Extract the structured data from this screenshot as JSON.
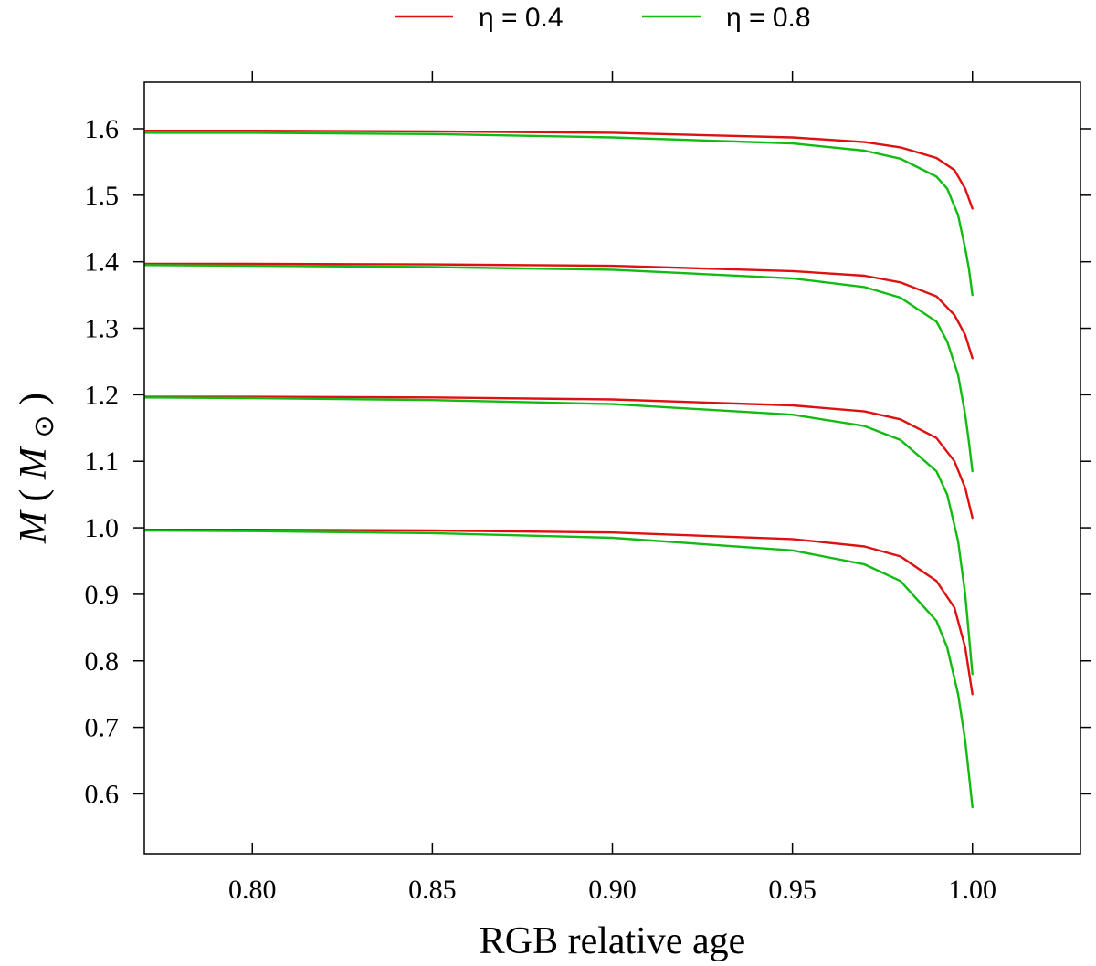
{
  "chart_data": {
    "type": "line",
    "title": "",
    "xlabel": "RGB relative age",
    "ylabel_symbol": "M",
    "ylabel_unit": "M",
    "ylabel_unit_subscript": "⊙",
    "xlim": [
      0.77,
      1.03
    ],
    "ylim": [
      0.51,
      1.67
    ],
    "x_ticks": [
      0.8,
      0.85,
      0.9,
      0.95,
      1.0
    ],
    "x_tick_labels": [
      "0.80",
      "0.85",
      "0.90",
      "0.95",
      "1.00"
    ],
    "y_ticks": [
      0.6,
      0.7,
      0.8,
      0.9,
      1.0,
      1.1,
      1.2,
      1.3,
      1.4,
      1.5,
      1.6
    ],
    "y_tick_labels": [
      "0.6",
      "0.7",
      "0.8",
      "0.9",
      "1.0",
      "1.1",
      "1.2",
      "1.3",
      "1.4",
      "1.5",
      "1.6"
    ],
    "grid": false,
    "legend_position": "top",
    "legend": [
      {
        "label": "η = 0.4",
        "color": "#dd1111"
      },
      {
        "label": "η = 0.8",
        "color": "#11bb11"
      }
    ],
    "series": [
      {
        "group": "η = 0.4",
        "initial_mass": 1.6,
        "color": "#dd1111",
        "x": [
          0.77,
          0.8,
          0.85,
          0.9,
          0.95,
          0.97,
          0.98,
          0.99,
          0.995,
          0.998,
          1.0
        ],
        "y": [
          1.597,
          1.597,
          1.596,
          1.594,
          1.587,
          1.58,
          1.572,
          1.556,
          1.538,
          1.51,
          1.48
        ]
      },
      {
        "group": "η = 0.8",
        "initial_mass": 1.6,
        "color": "#11bb11",
        "x": [
          0.77,
          0.8,
          0.85,
          0.9,
          0.95,
          0.97,
          0.98,
          0.99,
          0.993,
          0.996,
          0.998,
          0.999,
          1.0
        ],
        "y": [
          1.594,
          1.594,
          1.592,
          1.587,
          1.578,
          1.567,
          1.555,
          1.528,
          1.51,
          1.47,
          1.42,
          1.39,
          1.35
        ]
      },
      {
        "group": "η = 0.4",
        "initial_mass": 1.4,
        "color": "#dd1111",
        "x": [
          0.77,
          0.8,
          0.85,
          0.9,
          0.95,
          0.97,
          0.98,
          0.99,
          0.995,
          0.998,
          1.0
        ],
        "y": [
          1.397,
          1.397,
          1.396,
          1.394,
          1.386,
          1.379,
          1.369,
          1.348,
          1.32,
          1.29,
          1.255
        ]
      },
      {
        "group": "η = 0.8",
        "initial_mass": 1.4,
        "color": "#11bb11",
        "x": [
          0.77,
          0.8,
          0.85,
          0.9,
          0.95,
          0.97,
          0.98,
          0.99,
          0.993,
          0.996,
          0.998,
          0.999,
          1.0
        ],
        "y": [
          1.395,
          1.394,
          1.392,
          1.388,
          1.375,
          1.362,
          1.346,
          1.31,
          1.28,
          1.23,
          1.17,
          1.13,
          1.085
        ]
      },
      {
        "group": "η = 0.4",
        "initial_mass": 1.2,
        "color": "#dd1111",
        "x": [
          0.77,
          0.8,
          0.85,
          0.9,
          0.95,
          0.97,
          0.98,
          0.99,
          0.995,
          0.998,
          1.0
        ],
        "y": [
          1.197,
          1.197,
          1.196,
          1.193,
          1.184,
          1.175,
          1.163,
          1.135,
          1.1,
          1.06,
          1.015
        ]
      },
      {
        "group": "η = 0.8",
        "initial_mass": 1.2,
        "color": "#11bb11",
        "x": [
          0.77,
          0.8,
          0.85,
          0.9,
          0.95,
          0.97,
          0.98,
          0.99,
          0.993,
          0.996,
          0.998,
          0.999,
          1.0
        ],
        "y": [
          1.196,
          1.195,
          1.192,
          1.186,
          1.17,
          1.153,
          1.132,
          1.085,
          1.05,
          0.98,
          0.9,
          0.84,
          0.78
        ]
      },
      {
        "group": "η = 0.4",
        "initial_mass": 1.0,
        "color": "#dd1111",
        "x": [
          0.77,
          0.8,
          0.85,
          0.9,
          0.95,
          0.97,
          0.98,
          0.99,
          0.995,
          0.998,
          1.0
        ],
        "y": [
          0.997,
          0.997,
          0.996,
          0.993,
          0.983,
          0.972,
          0.957,
          0.92,
          0.88,
          0.82,
          0.75
        ]
      },
      {
        "group": "η = 0.8",
        "initial_mass": 1.0,
        "color": "#11bb11",
        "x": [
          0.77,
          0.8,
          0.85,
          0.9,
          0.95,
          0.97,
          0.98,
          0.99,
          0.993,
          0.996,
          0.998,
          0.999,
          1.0
        ],
        "y": [
          0.996,
          0.995,
          0.992,
          0.985,
          0.966,
          0.945,
          0.92,
          0.86,
          0.82,
          0.75,
          0.68,
          0.63,
          0.58
        ]
      }
    ]
  }
}
